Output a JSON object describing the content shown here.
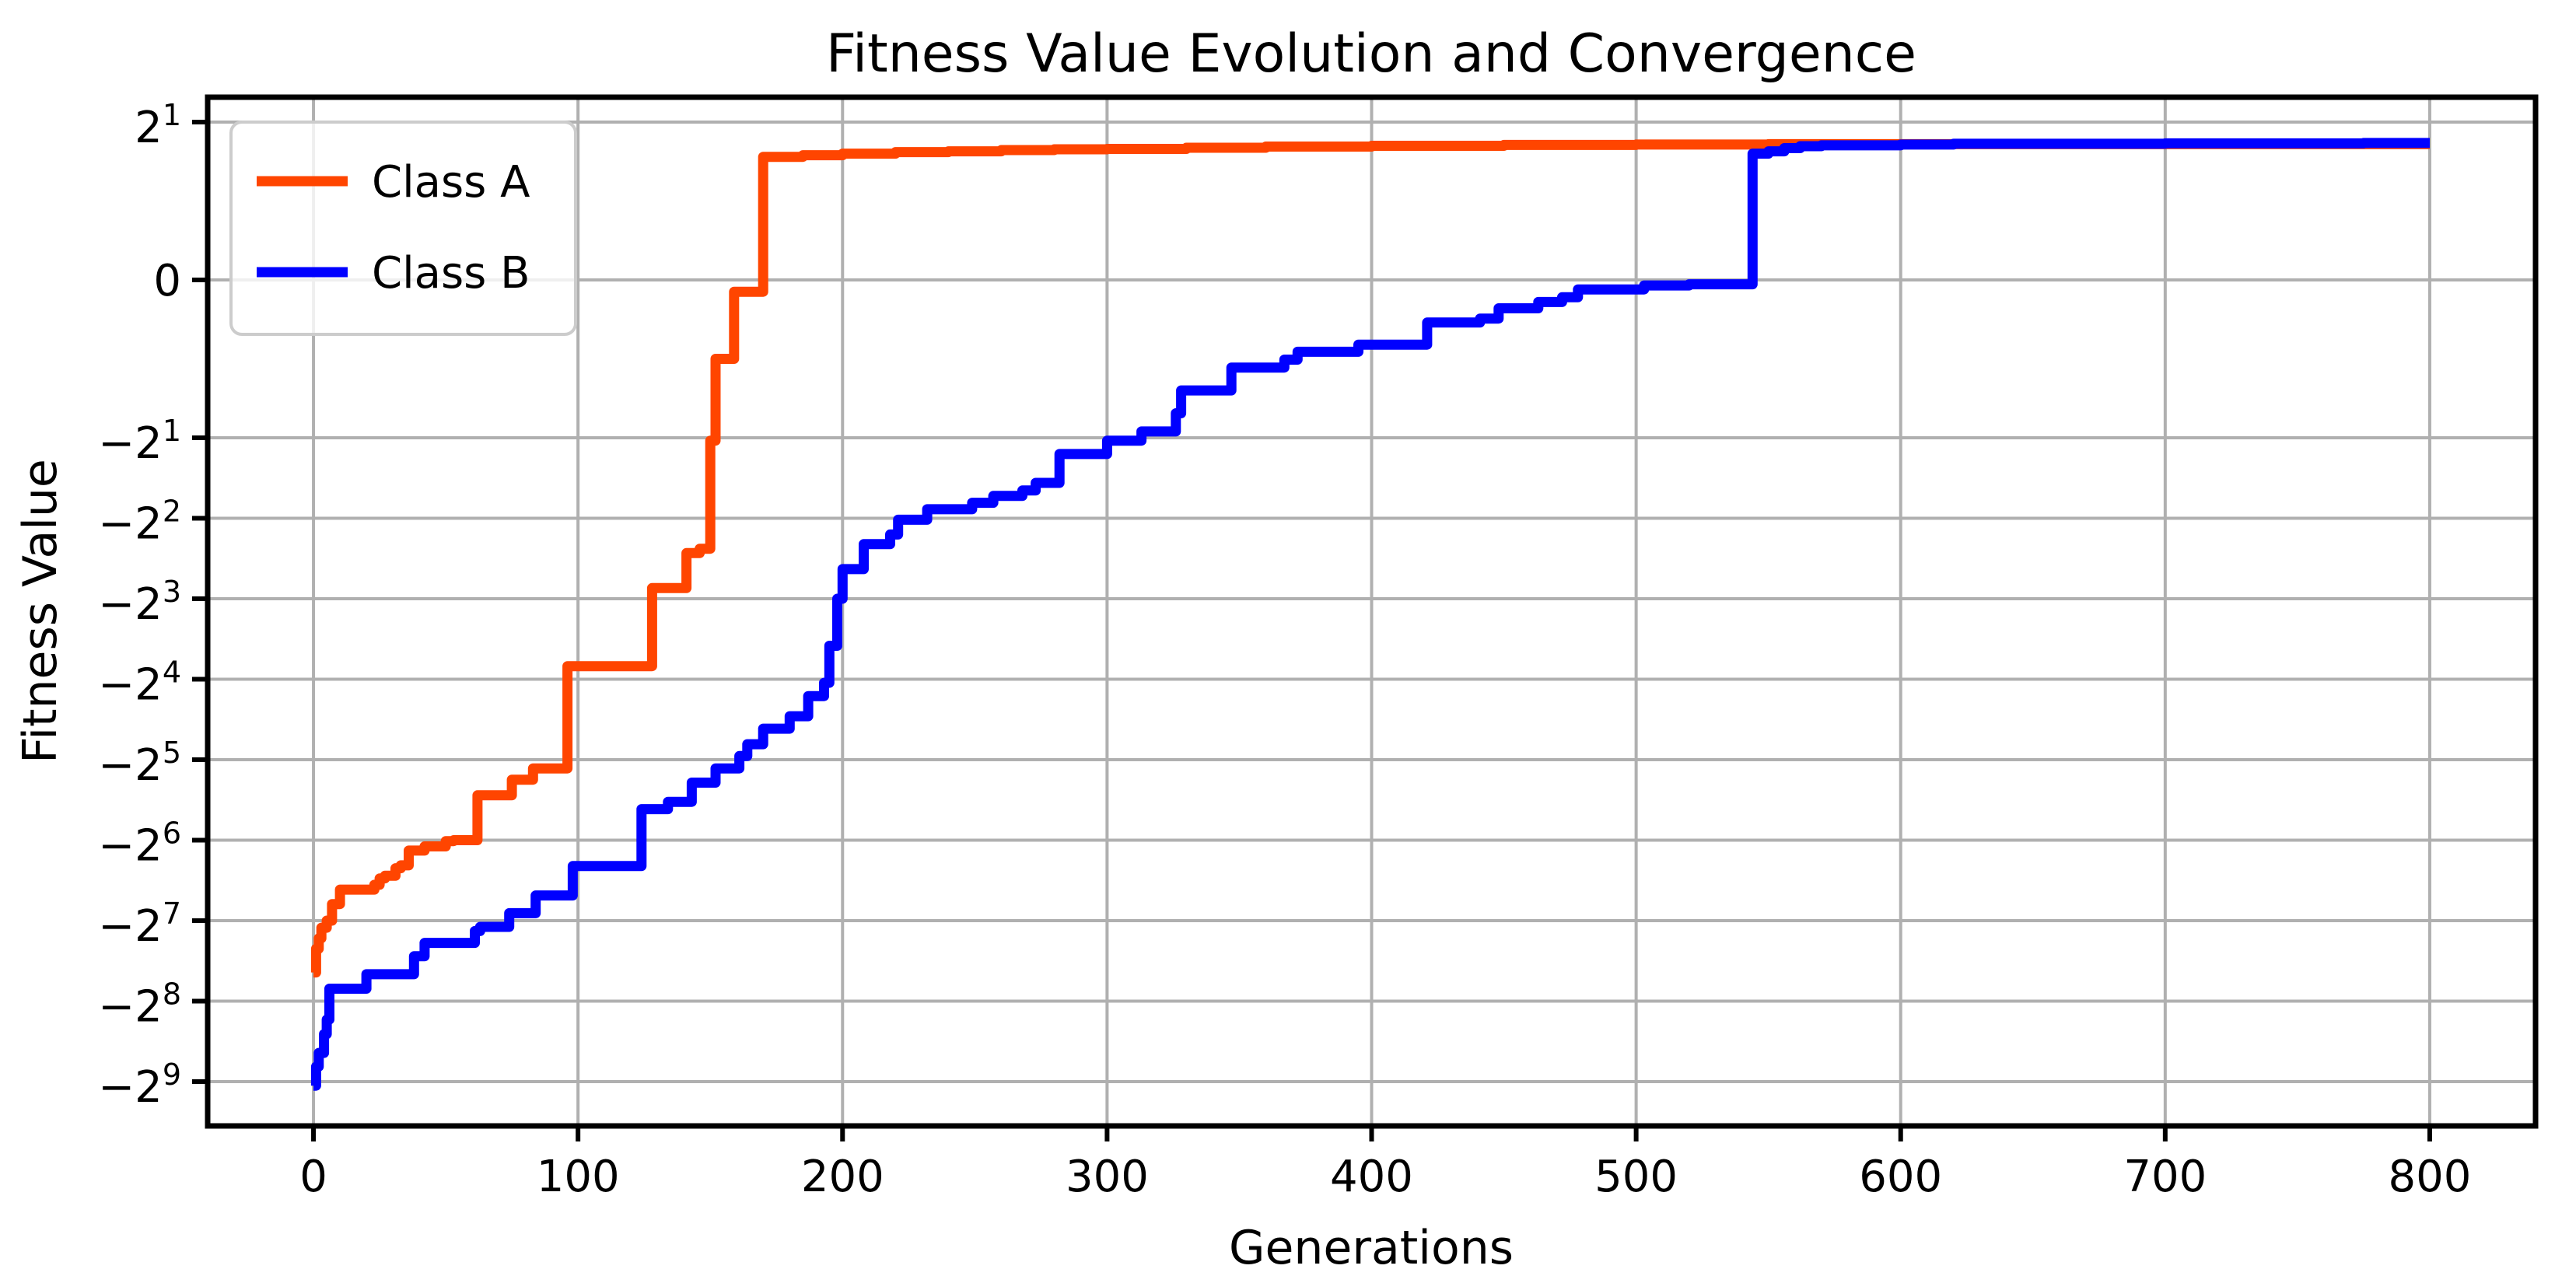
{
  "chart_data": {
    "type": "line",
    "title": "Fitness Value Evolution and Convergence",
    "xlabel": "Generations",
    "ylabel": "Fitness Value",
    "background_color": "#ffffff",
    "grid": true,
    "grid_color": "#b0b0b0",
    "frame_color": "#000000",
    "y_scale": {
      "type": "symlog",
      "base": 2,
      "linthresh": 2
    },
    "xlim": [
      -40,
      840
    ],
    "x_ticks": [
      {
        "value": 0,
        "label": "0"
      },
      {
        "value": 100,
        "label": "100"
      },
      {
        "value": 200,
        "label": "200"
      },
      {
        "value": 300,
        "label": "300"
      },
      {
        "value": 400,
        "label": "400"
      },
      {
        "value": 500,
        "label": "500"
      },
      {
        "value": 600,
        "label": "600"
      },
      {
        "value": 700,
        "label": "700"
      },
      {
        "value": 800,
        "label": "800"
      }
    ],
    "y_ticks": [
      {
        "value": 2,
        "base": "2",
        "exp": "1"
      },
      {
        "value": 0,
        "base": "0",
        "exp": ""
      },
      {
        "value": -2,
        "base": "−2",
        "exp": "1"
      },
      {
        "value": -4,
        "base": "−2",
        "exp": "2"
      },
      {
        "value": -8,
        "base": "−2",
        "exp": "3"
      },
      {
        "value": -16,
        "base": "−2",
        "exp": "4"
      },
      {
        "value": -32,
        "base": "−2",
        "exp": "5"
      },
      {
        "value": -64,
        "base": "−2",
        "exp": "6"
      },
      {
        "value": -128,
        "base": "−2",
        "exp": "7"
      },
      {
        "value": -256,
        "base": "−2",
        "exp": "8"
      },
      {
        "value": -512,
        "base": "−2",
        "exp": "9"
      }
    ],
    "legend": {
      "position": "upper-left",
      "entries": [
        {
          "label": "Class A",
          "color": "#ff4500"
        },
        {
          "label": "Class B",
          "color": "#0000ff"
        }
      ]
    },
    "series": [
      {
        "name": "Class A",
        "color": "#ff4500",
        "step": "post",
        "points": [
          [
            0,
            -200
          ],
          [
            1,
            -163
          ],
          [
            2,
            -149
          ],
          [
            3,
            -136
          ],
          [
            5,
            -128
          ],
          [
            7,
            -111
          ],
          [
            10,
            -98
          ],
          [
            23,
            -94
          ],
          [
            25,
            -89
          ],
          [
            27,
            -87
          ],
          [
            31,
            -81.5
          ],
          [
            33,
            -79.5
          ],
          [
            36,
            -70
          ],
          [
            42,
            -67.5
          ],
          [
            50,
            -64.5
          ],
          [
            53,
            -64
          ],
          [
            62,
            -43.5
          ],
          [
            75,
            -38
          ],
          [
            83,
            -34.5
          ],
          [
            96,
            -14.3
          ],
          [
            128,
            -7.3
          ],
          [
            141,
            -5.4
          ],
          [
            146,
            -5.2
          ],
          [
            150,
            -2.05
          ],
          [
            152,
            -1.0
          ],
          [
            159,
            -0.15
          ],
          [
            170,
            1.56
          ],
          [
            185,
            1.58
          ],
          [
            200,
            1.6
          ],
          [
            220,
            1.62
          ],
          [
            240,
            1.63
          ],
          [
            260,
            1.645
          ],
          [
            280,
            1.655
          ],
          [
            300,
            1.66
          ],
          [
            330,
            1.675
          ],
          [
            360,
            1.69
          ],
          [
            400,
            1.7
          ],
          [
            450,
            1.71
          ],
          [
            500,
            1.715
          ],
          [
            550,
            1.72
          ],
          [
            650,
            1.72
          ],
          [
            800,
            1.72
          ]
        ]
      },
      {
        "name": "Class B",
        "color": "#0000ff",
        "step": "post",
        "points": [
          [
            0,
            -530
          ],
          [
            1,
            -450
          ],
          [
            2,
            -400
          ],
          [
            4,
            -340
          ],
          [
            5,
            -300
          ],
          [
            6,
            -230
          ],
          [
            20,
            -203
          ],
          [
            38,
            -174
          ],
          [
            42,
            -155
          ],
          [
            61,
            -140
          ],
          [
            63,
            -135
          ],
          [
            74,
            -120
          ],
          [
            84,
            -103
          ],
          [
            98,
            -80
          ],
          [
            124,
            -49
          ],
          [
            134,
            -46
          ],
          [
            143,
            -39
          ],
          [
            152,
            -34.5
          ],
          [
            161,
            -31
          ],
          [
            164,
            -28
          ],
          [
            170,
            -24.5
          ],
          [
            180,
            -22
          ],
          [
            187,
            -18.5
          ],
          [
            193,
            -16.5
          ],
          [
            195,
            -12
          ],
          [
            198,
            -8
          ],
          [
            200,
            -6.2
          ],
          [
            208,
            -5.0
          ],
          [
            218,
            -4.6
          ],
          [
            221,
            -4.05
          ],
          [
            232,
            -3.7
          ],
          [
            249,
            -3.5
          ],
          [
            257,
            -3.3
          ],
          [
            268,
            -3.15
          ],
          [
            273,
            -2.95
          ],
          [
            282,
            -2.3
          ],
          [
            300,
            -2.05
          ],
          [
            313,
            -1.92
          ],
          [
            326,
            -1.69
          ],
          [
            328,
            -1.4
          ],
          [
            347,
            -1.11
          ],
          [
            367,
            -1.01
          ],
          [
            372,
            -0.91
          ],
          [
            395,
            -0.82
          ],
          [
            421,
            -0.54
          ],
          [
            441,
            -0.49
          ],
          [
            448,
            -0.36
          ],
          [
            463,
            -0.28
          ],
          [
            472,
            -0.22
          ],
          [
            478,
            -0.12
          ],
          [
            503,
            -0.07
          ],
          [
            520,
            -0.055
          ],
          [
            544,
            1.6
          ],
          [
            550,
            1.63
          ],
          [
            556,
            1.67
          ],
          [
            562,
            1.695
          ],
          [
            570,
            1.705
          ],
          [
            600,
            1.715
          ],
          [
            620,
            1.725
          ],
          [
            700,
            1.73
          ],
          [
            775,
            1.735
          ],
          [
            800,
            1.735
          ]
        ]
      }
    ]
  }
}
